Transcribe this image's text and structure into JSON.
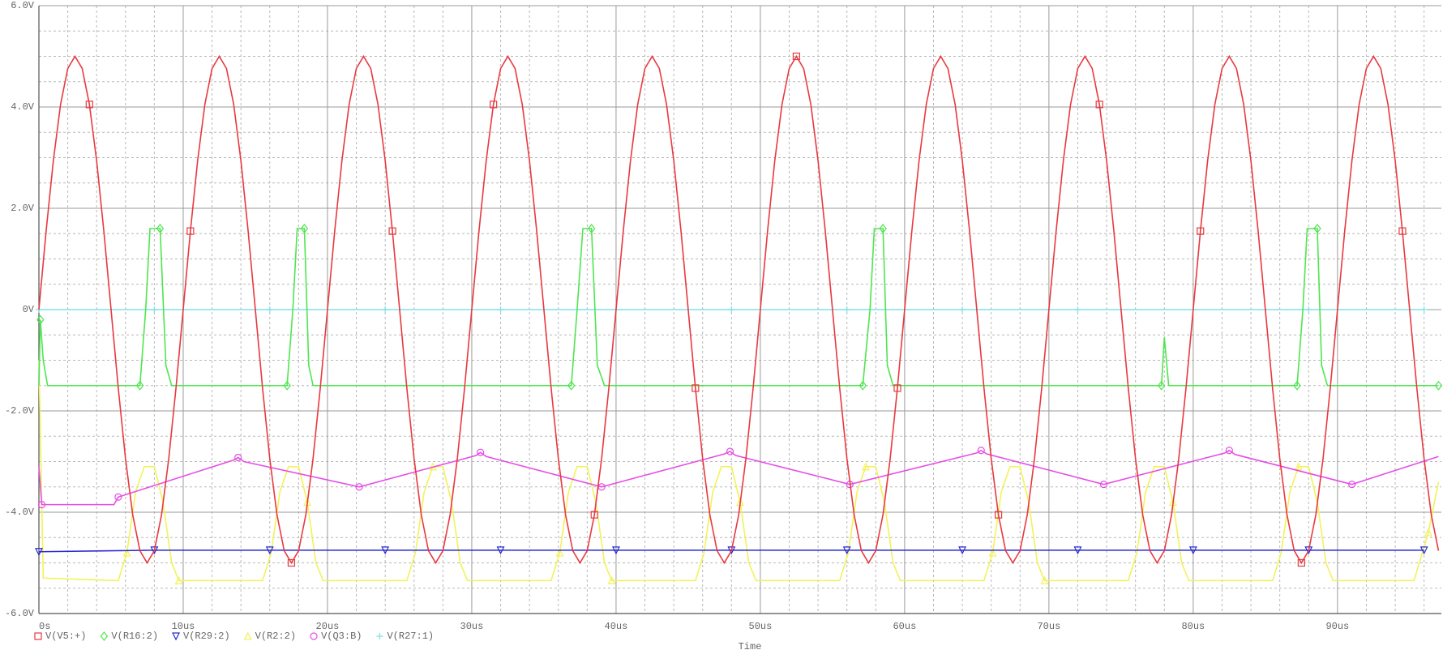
{
  "chart_data": {
    "type": "line",
    "x_label": "Time",
    "xlim": [
      0,
      97.2
    ],
    "ylim": [
      -6,
      6
    ],
    "grid": true,
    "legend": "bottom-left",
    "xticks": [
      {
        "value": 0,
        "label": "0s"
      },
      {
        "value": 10,
        "label": "10us"
      },
      {
        "value": 20,
        "label": "20us"
      },
      {
        "value": 30,
        "label": "30us"
      },
      {
        "value": 40,
        "label": "40us"
      },
      {
        "value": 50,
        "label": "50us"
      },
      {
        "value": 60,
        "label": "60us"
      },
      {
        "value": 70,
        "label": "70us"
      },
      {
        "value": 80,
        "label": "80us"
      },
      {
        "value": 90,
        "label": "90us"
      }
    ],
    "yticks": [
      {
        "value": 6,
        "label": "6.0V"
      },
      {
        "value": 4,
        "label": "4.0V"
      },
      {
        "value": 2,
        "label": "2.0V"
      },
      {
        "value": 0,
        "label": "0V"
      },
      {
        "value": -2,
        "label": "-2.0V"
      },
      {
        "value": -4,
        "label": "-4.0V"
      },
      {
        "value": -6,
        "label": "-6.0V"
      }
    ],
    "series": [
      {
        "name": "V(V5:+)",
        "color": "#e8393f",
        "marker": "square",
        "x": [
          0,
          0.5,
          1,
          1.5,
          2,
          2.5,
          3,
          3.5,
          4,
          4.5,
          5,
          5.5,
          6,
          6.5,
          7,
          7.5,
          8,
          8.5,
          9,
          9.5,
          10,
          10.5,
          11,
          11.5,
          12,
          12.5,
          13,
          13.5,
          14,
          14.5,
          15,
          15.5,
          16,
          16.5,
          17,
          17.5,
          18,
          18.5,
          19,
          19.5,
          20,
          20.5,
          21,
          21.5,
          22,
          22.5,
          23,
          23.5,
          24,
          24.5,
          25,
          25.5,
          26,
          26.5,
          27,
          27.5,
          28,
          28.5,
          29,
          29.5,
          30,
          30.5,
          31,
          31.5,
          32,
          32.5,
          33,
          33.5,
          34,
          34.5,
          35,
          35.5,
          36,
          36.5,
          37,
          37.5,
          38,
          38.5,
          39,
          39.5,
          40,
          40.5,
          41,
          41.5,
          42,
          42.5,
          43,
          43.5,
          44,
          44.5,
          45,
          45.5,
          46,
          46.5,
          47,
          47.5,
          48,
          48.5,
          49,
          49.5,
          50,
          50.5,
          51,
          51.5,
          52,
          52.5,
          53,
          53.5,
          54,
          54.5,
          55,
          55.5,
          56,
          56.5,
          57,
          57.5,
          58,
          58.5,
          59,
          59.5,
          60,
          60.5,
          61,
          61.5,
          62,
          62.5,
          63,
          63.5,
          64,
          64.5,
          65,
          65.5,
          66,
          66.5,
          67,
          67.5,
          68,
          68.5,
          69,
          69.5,
          70,
          70.5,
          71,
          71.5,
          72,
          72.5,
          73,
          73.5,
          74,
          74.5,
          75,
          75.5,
          76,
          76.5,
          77,
          77.5,
          78,
          78.5,
          79,
          79.5,
          80,
          80.5,
          81,
          81.5,
          82,
          82.5,
          83,
          83.5,
          84,
          84.5,
          85,
          85.5,
          86,
          86.5,
          87,
          87.5,
          88,
          88.5,
          89,
          89.5,
          90,
          90.5,
          91,
          91.5,
          92,
          92.5,
          93,
          93.5,
          94,
          94.5,
          95,
          95.5,
          96,
          96.5,
          97
        ],
        "values": [
          0,
          1.55,
          2.94,
          4.05,
          4.76,
          5,
          4.76,
          4.05,
          2.94,
          1.55,
          0,
          -1.55,
          -2.94,
          -4.05,
          -4.76,
          -5,
          -4.76,
          -4.05,
          -2.94,
          -1.55,
          0,
          1.55,
          2.94,
          4.05,
          4.76,
          5,
          4.76,
          4.05,
          2.94,
          1.55,
          0,
          -1.55,
          -2.94,
          -4.05,
          -4.76,
          -5,
          -4.76,
          -4.05,
          -2.94,
          -1.55,
          0,
          1.55,
          2.94,
          4.05,
          4.76,
          5,
          4.76,
          4.05,
          2.94,
          1.55,
          0,
          -1.55,
          -2.94,
          -4.05,
          -4.76,
          -5,
          -4.76,
          -4.05,
          -2.94,
          -1.55,
          0,
          1.55,
          2.94,
          4.05,
          4.76,
          5,
          4.76,
          4.05,
          2.94,
          1.55,
          0,
          -1.55,
          -2.94,
          -4.05,
          -4.76,
          -5,
          -4.76,
          -4.05,
          -2.94,
          -1.55,
          0,
          1.55,
          2.94,
          4.05,
          4.76,
          5,
          4.76,
          4.05,
          2.94,
          1.55,
          0,
          -1.55,
          -2.94,
          -4.05,
          -4.76,
          -5,
          -4.76,
          -4.05,
          -2.94,
          -1.55,
          0,
          1.55,
          2.94,
          4.05,
          4.76,
          5,
          4.76,
          4.05,
          2.94,
          1.55,
          0,
          -1.55,
          -2.94,
          -4.05,
          -4.76,
          -5,
          -4.76,
          -4.05,
          -2.94,
          -1.55,
          0,
          1.55,
          2.94,
          4.05,
          4.76,
          5,
          4.76,
          4.05,
          2.94,
          1.55,
          0,
          -1.55,
          -2.94,
          -4.05,
          -4.76,
          -5,
          -4.76,
          -4.05,
          -2.94,
          -1.55,
          0,
          1.55,
          2.94,
          4.05,
          4.76,
          5,
          4.76,
          4.05,
          2.94,
          1.55,
          0,
          -1.55,
          -2.94,
          -4.05,
          -4.76,
          -5,
          -4.76,
          -4.05,
          -2.94,
          -1.55,
          0,
          1.55,
          2.94,
          4.05,
          4.76,
          5,
          4.76,
          4.05,
          2.94,
          1.55,
          0,
          -1.55,
          -2.94,
          -4.05,
          -4.76,
          -5,
          -4.76,
          -4.05,
          -2.94,
          -1.55,
          0,
          1.55,
          2.94,
          4.05,
          4.76,
          5,
          4.76,
          4.05,
          2.94,
          1.55,
          0,
          -1.55,
          -2.94,
          -4.05,
          -4.76
        ]
      },
      {
        "name": "V(R16:2)",
        "color": "#4ee64e",
        "marker": "diamond",
        "x": [
          0,
          0.1,
          0.3,
          0.6,
          7.0,
          7.4,
          7.7,
          8.4,
          8.8,
          9.2,
          17.2,
          17.6,
          17.9,
          18.4,
          18.7,
          19.0,
          36.9,
          37.3,
          37.7,
          38.3,
          38.7,
          39.2,
          57.1,
          57.6,
          57.9,
          58.5,
          58.8,
          59.2,
          77.8,
          78.0,
          78.3,
          87.2,
          87.6,
          87.9,
          88.6,
          88.9,
          89.3,
          97
        ],
        "values": [
          -1.5,
          -0.2,
          -1.0,
          -1.5,
          -1.5,
          0.0,
          1.6,
          1.6,
          -1.1,
          -1.5,
          -1.5,
          0.0,
          1.6,
          1.6,
          -1.1,
          -1.5,
          -1.5,
          0.0,
          1.6,
          1.6,
          -1.1,
          -1.5,
          -1.5,
          0.0,
          1.6,
          1.6,
          -1.1,
          -1.5,
          -1.5,
          -0.55,
          -1.5,
          -1.5,
          0.0,
          1.6,
          1.6,
          -1.1,
          -1.5,
          -1.5
        ]
      },
      {
        "name": "V(R29:2)",
        "color": "#2a2ad0",
        "marker": "triangle-down",
        "x": [
          0,
          8,
          16,
          24,
          32,
          40,
          48,
          56,
          64,
          72,
          80,
          88,
          96
        ],
        "values": [
          -4.78,
          -4.75,
          -4.75,
          -4.75,
          -4.75,
          -4.75,
          -4.75,
          -4.75,
          -4.75,
          -4.75,
          -4.75,
          -4.75,
          -4.75
        ]
      },
      {
        "name": "V(R2:2)",
        "color": "#f2f25a",
        "marker": "triangle-up",
        "x": [
          0,
          0.3,
          5.5,
          6.1,
          6.7,
          7.3,
          8.0,
          8.6,
          9.2,
          9.7,
          15.5,
          16.1,
          16.7,
          17.3,
          18.0,
          18.6,
          19.2,
          19.7,
          25.5,
          26.1,
          26.7,
          27.3,
          28.0,
          28.6,
          29.2,
          29.7,
          35.5,
          36.1,
          36.7,
          37.3,
          38.0,
          38.6,
          39.2,
          39.7,
          45.5,
          46.1,
          46.7,
          47.3,
          48.0,
          48.6,
          49.2,
          49.7,
          55.5,
          56.1,
          56.7,
          57.3,
          58.0,
          58.6,
          59.2,
          59.7,
          65.5,
          66.1,
          66.7,
          67.3,
          68.0,
          68.6,
          69.2,
          69.7,
          75.5,
          76.1,
          76.7,
          77.3,
          78.0,
          78.6,
          79.2,
          79.7,
          85.5,
          86.1,
          86.7,
          87.3,
          88.0,
          88.6,
          89.2,
          89.7,
          95.3,
          96.3,
          97
        ],
        "values": [
          -1.0,
          -5.3,
          -5.35,
          -4.8,
          -3.6,
          -3.1,
          -3.1,
          -3.8,
          -5.0,
          -5.35,
          -5.35,
          -4.8,
          -3.6,
          -3.1,
          -3.1,
          -3.8,
          -5.0,
          -5.35,
          -5.35,
          -4.8,
          -3.6,
          -3.1,
          -3.1,
          -3.8,
          -5.0,
          -5.35,
          -5.35,
          -4.8,
          -3.6,
          -3.1,
          -3.1,
          -3.8,
          -5.0,
          -5.35,
          -5.35,
          -4.8,
          -3.6,
          -3.1,
          -3.1,
          -3.8,
          -5.0,
          -5.35,
          -5.35,
          -4.8,
          -3.6,
          -3.1,
          -3.1,
          -3.8,
          -5.0,
          -5.35,
          -5.35,
          -4.8,
          -3.6,
          -3.1,
          -3.1,
          -3.8,
          -5.0,
          -5.35,
          -5.35,
          -4.8,
          -3.6,
          -3.1,
          -3.1,
          -3.8,
          -5.0,
          -5.35,
          -5.35,
          -4.8,
          -3.6,
          -3.1,
          -3.1,
          -3.8,
          -5.0,
          -5.35,
          -5.35,
          -4.4,
          -3.4
        ]
      },
      {
        "name": "V(Q3:B)",
        "color": "#e64ee6",
        "marker": "circle",
        "x": [
          0,
          0.2,
          5.2,
          5.5,
          13.5,
          13.8,
          14.2,
          22.2,
          30.3,
          30.6,
          31.0,
          39.0,
          47.5,
          47.9,
          48.3,
          56.2,
          65.0,
          65.3,
          65.7,
          73.8,
          82.2,
          82.5,
          82.9,
          91.0,
          97
        ],
        "values": [
          -3.1,
          -3.85,
          -3.85,
          -3.7,
          -2.97,
          -2.92,
          -3.0,
          -3.5,
          -2.88,
          -2.82,
          -2.9,
          -3.5,
          -2.85,
          -2.8,
          -2.88,
          -3.45,
          -2.83,
          -2.78,
          -2.85,
          -3.45,
          -2.83,
          -2.78,
          -2.86,
          -3.45,
          -2.9
        ]
      },
      {
        "name": "V(R27:1)",
        "color": "#7ee0e8",
        "marker": "plus",
        "x": [
          0,
          8,
          16,
          24,
          32,
          40,
          48,
          56,
          64,
          72,
          80,
          88,
          96
        ],
        "values": [
          0,
          0,
          0,
          0,
          0,
          0,
          0,
          0,
          0,
          0,
          0,
          0,
          0
        ]
      }
    ]
  }
}
